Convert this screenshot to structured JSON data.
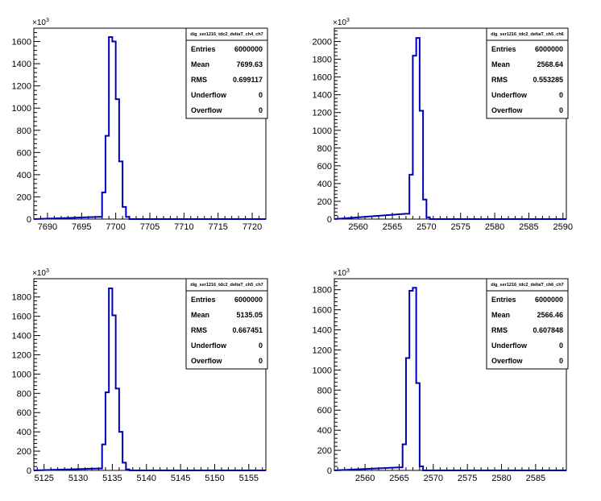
{
  "chart_data": [
    {
      "type": "histogram",
      "title": "",
      "xlabel": "",
      "ylabel": "",
      "y_multiplier": "×10",
      "y_multiplier_exp": "3",
      "xlim": [
        7688,
        7722
      ],
      "ylim": [
        0,
        1720
      ],
      "x_ticks": [
        7690,
        7695,
        7700,
        7705,
        7710,
        7715,
        7720
      ],
      "y_ticks": [
        0,
        200,
        400,
        600,
        800,
        1000,
        1200,
        1400,
        1600
      ],
      "bin_width": 0.5,
      "bins_x": [
        7697.5,
        7698,
        7698.5,
        7699,
        7699.5,
        7700,
        7700.5,
        7701,
        7701.5,
        7702
      ],
      "bins_y": [
        20,
        240,
        750,
        1640,
        1600,
        1080,
        520,
        110,
        20,
        0
      ],
      "stats": {
        "name": "dig_ser1216_tdc2_deltaT_ch4_ch7",
        "rows": [
          {
            "label": "Entries",
            "value": "6000000"
          },
          {
            "label": "Mean",
            "value": "7699.63"
          },
          {
            "label": "RMS",
            "value": "0.699117"
          },
          {
            "label": "Underflow",
            "value": "0"
          },
          {
            "label": "Overflow",
            "value": "0"
          }
        ]
      },
      "line_color": "#0000b8"
    },
    {
      "type": "histogram",
      "title": "",
      "xlabel": "",
      "ylabel": "",
      "y_multiplier": "×10",
      "y_multiplier_exp": "3",
      "xlim": [
        2556.5,
        2590.5
      ],
      "ylim": [
        0,
        2150
      ],
      "x_ticks": [
        2560,
        2565,
        2570,
        2575,
        2580,
        2585,
        2590
      ],
      "y_ticks": [
        0,
        200,
        400,
        600,
        800,
        1000,
        1200,
        1400,
        1600,
        1800,
        2000
      ],
      "bin_width": 0.5,
      "bins_x": [
        2567,
        2567.5,
        2568,
        2568.5,
        2569,
        2569.5,
        2570
      ],
      "bins_y": [
        60,
        500,
        1840,
        2040,
        1220,
        220,
        20
      ],
      "stats": {
        "name": "dig_ser1216_tdc2_deltaT_ch5_ch6",
        "rows": [
          {
            "label": "Entries",
            "value": "6000000"
          },
          {
            "label": "Mean",
            "value": "2568.64"
          },
          {
            "label": "RMS",
            "value": "0.553285"
          },
          {
            "label": "Underflow",
            "value": "0"
          },
          {
            "label": "Overflow",
            "value": "0"
          }
        ]
      },
      "line_color": "#0000b8"
    },
    {
      "type": "histogram",
      "title": "",
      "xlabel": "",
      "ylabel": "",
      "y_multiplier": "×10",
      "y_multiplier_exp": "3",
      "xlim": [
        5123.5,
        5157.5
      ],
      "ylim": [
        0,
        1990
      ],
      "x_ticks": [
        5125,
        5130,
        5135,
        5140,
        5145,
        5150,
        5155
      ],
      "y_ticks": [
        0,
        200,
        400,
        600,
        800,
        1000,
        1200,
        1400,
        1600,
        1800
      ],
      "bin_width": 0.5,
      "bins_x": [
        5133,
        5133.5,
        5134,
        5134.5,
        5135,
        5135.5,
        5136,
        5136.5,
        5137
      ],
      "bins_y": [
        20,
        270,
        810,
        1890,
        1610,
        850,
        400,
        80,
        10
      ],
      "stats": {
        "name": "dig_ser1216_tdc2_deltaT_ch5_ch7",
        "rows": [
          {
            "label": "Entries",
            "value": "6000000"
          },
          {
            "label": "Mean",
            "value": "5135.05"
          },
          {
            "label": "RMS",
            "value": "0.667451"
          },
          {
            "label": "Underflow",
            "value": "0"
          },
          {
            "label": "Overflow",
            "value": "0"
          }
        ]
      },
      "line_color": "#0000b8"
    },
    {
      "type": "histogram",
      "title": "",
      "xlabel": "",
      "ylabel": "",
      "y_multiplier": "×10",
      "y_multiplier_exp": "3",
      "xlim": [
        2555.5,
        2589.5
      ],
      "ylim": [
        0,
        1910
      ],
      "x_ticks": [
        2560,
        2565,
        2570,
        2575,
        2580,
        2585
      ],
      "y_ticks": [
        0,
        200,
        400,
        600,
        800,
        1000,
        1200,
        1400,
        1600,
        1800
      ],
      "bin_width": 0.5,
      "bins_x": [
        2565,
        2565.5,
        2566,
        2566.5,
        2567,
        2567.5,
        2568
      ],
      "bins_y": [
        30,
        260,
        1120,
        1790,
        1820,
        870,
        40
      ],
      "stats": {
        "name": "dig_ser1216_tdc2_deltaT_ch6_ch7",
        "rows": [
          {
            "label": "Entries",
            "value": "6000000"
          },
          {
            "label": "Mean",
            "value": "2566.46"
          },
          {
            "label": "RMS",
            "value": "0.607848"
          },
          {
            "label": "Underflow",
            "value": "0"
          },
          {
            "label": "Overflow",
            "value": "0"
          }
        ]
      },
      "line_color": "#0000b8"
    }
  ]
}
